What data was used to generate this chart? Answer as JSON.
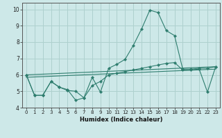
{
  "xlabel": "Humidex (Indice chaleur)",
  "background_color": "#cde8e8",
  "grid_color": "#aed0ce",
  "line_color": "#2e7d6e",
  "xlim": [
    -0.5,
    23.5
  ],
  "ylim": [
    4.0,
    10.4
  ],
  "xticks": [
    0,
    1,
    2,
    3,
    4,
    5,
    6,
    7,
    8,
    9,
    10,
    11,
    12,
    13,
    14,
    15,
    16,
    17,
    18,
    19,
    20,
    21,
    22,
    23
  ],
  "yticks": [
    4,
    5,
    6,
    7,
    8,
    9,
    10
  ],
  "lines": [
    {
      "x": [
        0,
        1,
        2,
        3,
        4,
        5,
        6,
        7,
        8,
        9,
        10,
        11,
        12,
        13,
        14,
        15,
        16,
        17,
        18,
        19,
        20,
        21,
        22,
        23
      ],
      "y": [
        6.0,
        4.75,
        4.75,
        5.6,
        5.25,
        5.1,
        4.45,
        4.6,
        5.85,
        4.95,
        6.4,
        6.65,
        6.95,
        7.8,
        8.8,
        9.95,
        9.8,
        8.7,
        8.4,
        6.35,
        6.35,
        6.4,
        6.4,
        6.5
      ],
      "markers": true
    },
    {
      "x": [
        0,
        1,
        2,
        3,
        4,
        5,
        6,
        7,
        8,
        9,
        10,
        11,
        12,
        13,
        14,
        15,
        16,
        17,
        18,
        19,
        20,
        21,
        22,
        23
      ],
      "y": [
        6.0,
        4.75,
        4.75,
        5.6,
        5.25,
        5.05,
        5.0,
        4.6,
        5.35,
        5.6,
        6.0,
        6.1,
        6.2,
        6.3,
        6.4,
        6.5,
        6.6,
        6.7,
        6.75,
        6.3,
        6.3,
        6.35,
        4.95,
        6.5
      ],
      "markers": true
    },
    {
      "x": [
        0,
        23
      ],
      "y": [
        6.0,
        6.5
      ],
      "markers": false
    },
    {
      "x": [
        0,
        23
      ],
      "y": [
        5.85,
        6.35
      ],
      "markers": false
    }
  ],
  "xlabel_fontsize": 6.0,
  "tick_fontsize_x": 5.0,
  "tick_fontsize_y": 5.5
}
